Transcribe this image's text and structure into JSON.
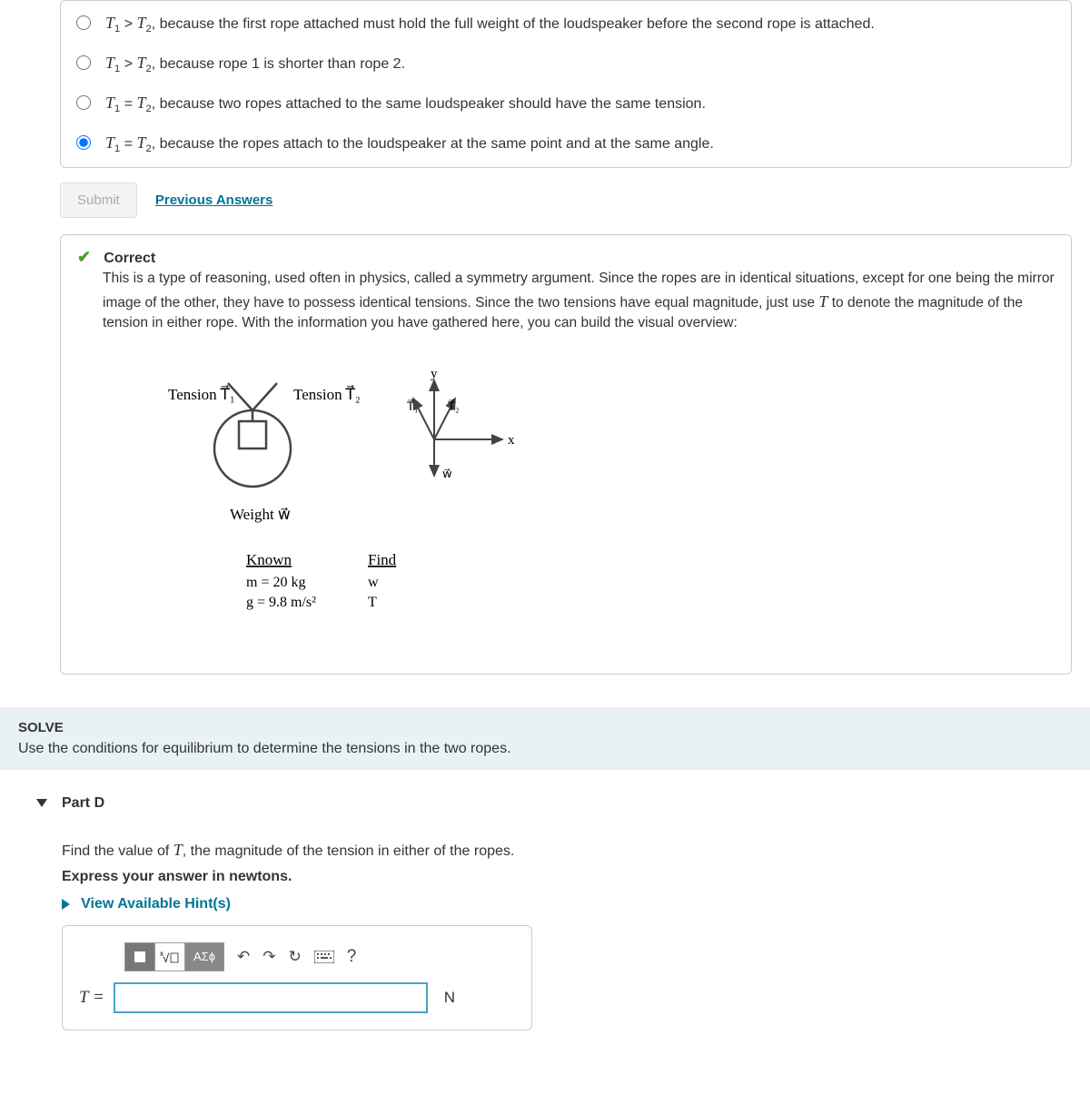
{
  "options": {
    "opt1": "<span class='math-ital'>T</span><span class='sub'>1</span> &gt; <span class='math-ital'>T</span><span class='sub'>2</span>, because the first rope attached must hold the full weight of the loudspeaker before the second rope is attached.",
    "opt2": "<span class='math-ital'>T</span><span class='sub'>1</span> &gt; <span class='math-ital'>T</span><span class='sub'>2</span>, because rope 1 is shorter than rope 2.",
    "opt3": "<span class='math-ital'>T</span><span class='sub'>1</span> = <span class='math-ital'>T</span><span class='sub'>2</span>, because two ropes attached to the same loudspeaker should have the same tension.",
    "opt4": "<span class='math-ital'>T</span><span class='sub'>1</span> = <span class='math-ital'>T</span><span class='sub'>2</span>, because the ropes attach to the loudspeaker at the same point and at the same angle.",
    "selected": 4
  },
  "actions": {
    "submit_label": "Submit",
    "prev_label": "Previous Answers"
  },
  "feedback": {
    "title": "Correct",
    "body": "This is a type of reasoning, used often in physics, called a symmetry argument. Since the ropes are in identical situations, except for one being the mirror image of the other, they have to possess identical tensions. Since the two tensions have equal magnitude, just use <span class='math-ital'>T</span> to denote the magnitude of the tension in either rope. With the information you have gathered here, you can build the visual overview:"
  },
  "diagram": {
    "t1_label": "Tension T₁",
    "t2_label": "Tension T₂",
    "weight_label": "Weight w",
    "y_label": "y",
    "x_label": "x",
    "t1v": "T₁",
    "t2v": "T₂",
    "wv": "w",
    "known_title": "Known",
    "known_m": "m = 20 kg",
    "known_g": "g = 9.8 m/s²",
    "find_title": "Find",
    "find_w": "w",
    "find_t": "T",
    "colors": {
      "line": "#444",
      "bg": "#fff"
    }
  },
  "solve": {
    "title": "SOLVE",
    "text": "Use the conditions for equilibrium to determine the tensions in the two ropes."
  },
  "partD": {
    "title": "Part D",
    "prompt": "Find the value of <span class='math-ital'>T</span>, the magnitude of the tension in either of the ropes.",
    "express": "Express your answer in newtons.",
    "hints": "View Available Hint(s)",
    "eq_label": "T =",
    "unit": "N",
    "input_value": ""
  },
  "toolbar": {
    "templates": "■",
    "sqrt": "√",
    "greek": "ΑΣϕ",
    "undo": "↶",
    "redo": "↷",
    "reset": "↻",
    "keyboard": "⌨",
    "help": "?"
  }
}
